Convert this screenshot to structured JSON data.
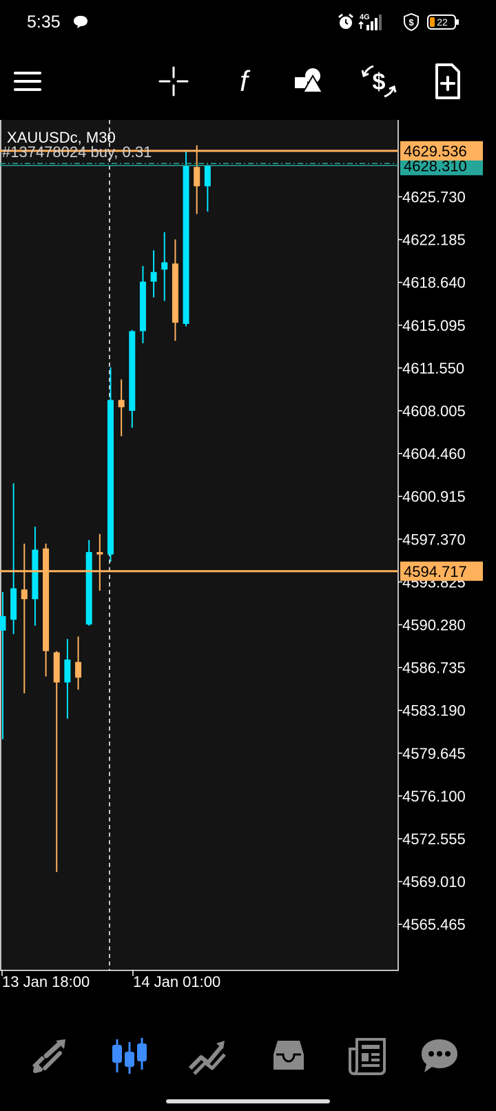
{
  "status_bar": {
    "time": "5:35",
    "network": "4G",
    "battery": "22",
    "icons": [
      "chat-bubble-icon",
      "alarm-icon",
      "signal-icon",
      "shield-dollar-icon",
      "battery-icon"
    ]
  },
  "toolbar": {
    "items": [
      {
        "name": "menu-button",
        "icon": "hamburger-icon"
      },
      {
        "name": "crosshair-button",
        "icon": "crosshair-icon"
      },
      {
        "name": "indicators-button",
        "icon": "function-icon"
      },
      {
        "name": "objects-button",
        "icon": "shapes-icon"
      },
      {
        "name": "trade-button",
        "icon": "dollar-exchange-icon"
      },
      {
        "name": "new-order-button",
        "icon": "document-plus-icon"
      }
    ]
  },
  "chart": {
    "symbol_label": "XAUUSDc, M30",
    "order_label": "#137478024 buy, 0.31",
    "price_ticks": [
      "4625.730",
      "4622.185",
      "4618.640",
      "4615.095",
      "4611.550",
      "4608.005",
      "4604.460",
      "4600.915",
      "4597.370",
      "4593.825",
      "4590.280",
      "4586.735",
      "4583.190",
      "4579.645",
      "4576.100",
      "4572.555",
      "4569.010",
      "4565.465"
    ],
    "time_ticks": [
      "13 Jan 18:00",
      "14 Jan 01:00"
    ],
    "levels": {
      "ask": "4629.536",
      "bid": "4628.310",
      "order": "4594.717"
    },
    "colors": {
      "background": "#141414",
      "bull": "#00e5ff",
      "bear": "#ffb15c",
      "ask_line": "#ffb15c",
      "bid_line": "#26a69a",
      "frame": "#ffffff"
    }
  },
  "chart_data": {
    "type": "candlestick",
    "symbol": "XAUUSDc",
    "timeframe": "M30",
    "x_ticks": [
      "13 Jan 18:00",
      "14 Jan 01:00"
    ],
    "ylim": [
      4562.5,
      4632.0
    ],
    "candles": [
      {
        "o": 4589.8,
        "h": 4593.0,
        "l": 4580.8,
        "c": 4591.0
      },
      {
        "o": 4590.7,
        "h": 4602.0,
        "l": 4589.5,
        "c": 4593.3
      },
      {
        "o": 4593.2,
        "h": 4597.0,
        "l": 4584.6,
        "c": 4592.4
      },
      {
        "o": 4592.4,
        "h": 4598.4,
        "l": 4590.2,
        "c": 4596.5
      },
      {
        "o": 4596.6,
        "h": 4597.0,
        "l": 4586.0,
        "c": 4588.1
      },
      {
        "o": 4588.0,
        "h": 4588.1,
        "l": 4569.8,
        "c": 4585.5
      },
      {
        "o": 4585.5,
        "h": 4589.1,
        "l": 4582.5,
        "c": 4587.4
      },
      {
        "o": 4587.2,
        "h": 4589.3,
        "l": 4584.9,
        "c": 4585.9
      },
      {
        "o": 4590.3,
        "h": 4597.3,
        "l": 4590.2,
        "c": 4596.3
      },
      {
        "o": 4596.3,
        "h": 4597.8,
        "l": 4593.1,
        "c": 4596.1
      },
      {
        "o": 4596.1,
        "h": 4611.6,
        "l": 4595.5,
        "c": 4608.9
      },
      {
        "o": 4608.9,
        "h": 4610.6,
        "l": 4605.9,
        "c": 4608.3
      },
      {
        "o": 4608.0,
        "h": 4614.7,
        "l": 4606.6,
        "c": 4614.6
      },
      {
        "o": 4614.6,
        "h": 4620.0,
        "l": 4613.6,
        "c": 4618.7
      },
      {
        "o": 4618.7,
        "h": 4621.3,
        "l": 4617.4,
        "c": 4619.5
      },
      {
        "o": 4619.7,
        "h": 4622.8,
        "l": 4617.1,
        "c": 4620.3
      },
      {
        "o": 4620.2,
        "h": 4622.2,
        "l": 4613.8,
        "c": 4615.3
      },
      {
        "o": 4615.2,
        "h": 4629.6,
        "l": 4615.0,
        "c": 4628.3
      },
      {
        "o": 4628.2,
        "h": 4630.0,
        "l": 4624.3,
        "c": 4626.6
      },
      {
        "o": 4626.6,
        "h": 4628.4,
        "l": 4624.5,
        "c": 4628.3
      }
    ]
  },
  "bottom_nav": {
    "items": [
      {
        "name": "nav-quotes",
        "icon": "quotes-arrows-icon",
        "active": false
      },
      {
        "name": "nav-chart",
        "icon": "candlestick-icon",
        "active": true
      },
      {
        "name": "nav-trade",
        "icon": "trade-trend-icon",
        "active": false
      },
      {
        "name": "nav-history",
        "icon": "inbox-icon",
        "active": false
      },
      {
        "name": "nav-news",
        "icon": "newspaper-icon",
        "active": false
      },
      {
        "name": "nav-messages",
        "icon": "chat-icon",
        "active": false
      }
    ],
    "active_color": "#3d8bff",
    "inactive_color": "#8a8a8a"
  }
}
